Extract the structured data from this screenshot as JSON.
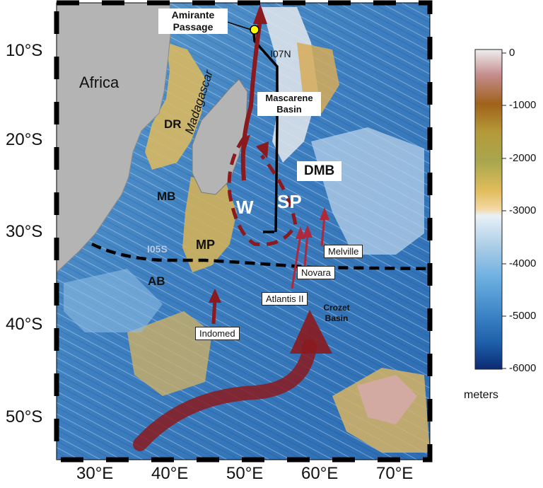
{
  "map": {
    "lat_labels": [
      "10°S",
      "20°S",
      "30°S",
      "40°S",
      "50°S"
    ],
    "lon_labels": [
      "30°E",
      "40°E",
      "50°E",
      "60°E",
      "70°E"
    ],
    "extent": {
      "lon": [
        25,
        75
      ],
      "lat": [
        -55,
        -5
      ]
    },
    "regions": {
      "africa": "Africa",
      "madagascar": "Madagascar",
      "dr": "DR",
      "mb": "MB",
      "mp": "MP",
      "ab": "AB",
      "w": "W",
      "sp": "SP",
      "dmb": "DMB",
      "i07n": "I07N",
      "i05s": "I05S",
      "mascarene_basin": "Mascarene Basin",
      "amirante_passage": "Amirante Passage",
      "crozet_basin": "Crozet Basin"
    },
    "boxed_labels": {
      "melville": "Melville",
      "novara": "Novara",
      "atlantis": "Atlantis II",
      "indomed": "Indomed"
    },
    "colors": {
      "arrow": "#8b1a1e",
      "section_line": "#000000",
      "land": "#b4b4b4",
      "passage_marker": "#ffff00"
    }
  },
  "colorbar": {
    "ticks": [
      "0",
      "-1000",
      "-2000",
      "-3000",
      "-4000",
      "-5000",
      "-6000"
    ],
    "unit": "meters",
    "range": [
      -6000,
      0
    ]
  }
}
